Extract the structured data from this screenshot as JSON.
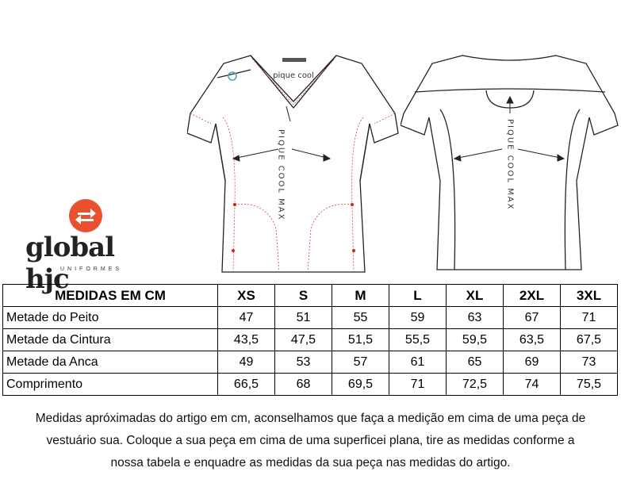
{
  "front_garment": {
    "label_text": "pique cool",
    "vertical_text": "PIQUE COOL MAX"
  },
  "back_garment": {
    "vertical_text": "PIQUE COOL MAX"
  },
  "logo": {
    "name": "global hjc",
    "subtitle": "UNIFORMES",
    "color": "#e8502f"
  },
  "size_table": {
    "header": [
      "MEDIDAS EM CM",
      "XS",
      "S",
      "M",
      "L",
      "XL",
      "2XL",
      "3XL"
    ],
    "rows": [
      [
        "Metade do Peito",
        "47",
        "51",
        "55",
        "59",
        "63",
        "67",
        "71"
      ],
      [
        "Metade da Cintura",
        "43,5",
        "47,5",
        "51,5",
        "55,5",
        "59,5",
        "63,5",
        "67,5"
      ],
      [
        "Metade da Anca",
        "49",
        "53",
        "57",
        "61",
        "65",
        "69",
        "73"
      ],
      [
        "Comprimento",
        "66,5",
        "68",
        "69,5",
        "71",
        "72,5",
        "74",
        "75,5"
      ]
    ]
  },
  "note": {
    "lines": [
      "Medidas apróximadas do artigo em cm, aconselhamos que faça a medição em cima de uma peça de",
      "vestuário sua. Coloque a sua peça em cima de uma superficei plana, tire as medidas conforme a",
      "nossa tabela e enquadre as medidas da sua peça nas medidas do artigo."
    ]
  }
}
